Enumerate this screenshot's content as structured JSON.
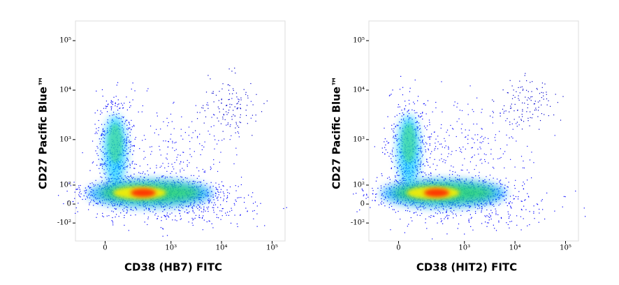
{
  "chart_data": [
    {
      "type": "density",
      "xlabel": "CD38 (HB7) FITC",
      "ylabel": "CD27 Pacific Blue™",
      "xscale": "biexponential",
      "yscale": "biexponential",
      "xlim": [
        -180,
        180000
      ],
      "ylim": [
        -270,
        250000
      ],
      "xticks": [
        {
          "value": 0,
          "label": "0"
        },
        {
          "value": 1000,
          "label": "10³"
        },
        {
          "value": 10000,
          "label": "10⁴"
        },
        {
          "value": 100000,
          "label": "10⁵"
        }
      ],
      "yticks": [
        {
          "value": -100,
          "label": "-10²"
        },
        {
          "value": 0,
          "label": "0"
        },
        {
          "value": 100,
          "label": "10²"
        },
        {
          "value": 1000,
          "label": "10³"
        },
        {
          "value": 10000,
          "label": "10⁴"
        },
        {
          "value": 100000,
          "label": "10⁵"
        }
      ]
    },
    {
      "type": "density",
      "xlabel": "CD38 (HIT2) FITC",
      "ylabel": "CD27 Pacific Blue™",
      "xscale": "biexponential",
      "yscale": "biexponential",
      "xlim": [
        -180,
        180000
      ],
      "ylim": [
        -270,
        250000
      ],
      "xticks": [
        {
          "value": 0,
          "label": "0"
        },
        {
          "value": 1000,
          "label": "10³"
        },
        {
          "value": 10000,
          "label": "10⁴"
        },
        {
          "value": 100000,
          "label": "10⁵"
        }
      ],
      "yticks": [
        {
          "value": -100,
          "label": "-10²"
        },
        {
          "value": 0,
          "label": "0"
        },
        {
          "value": 100,
          "label": "10²"
        },
        {
          "value": 1000,
          "label": "10³"
        },
        {
          "value": 10000,
          "label": "10⁴"
        },
        {
          "value": 100000,
          "label": "10⁵"
        }
      ]
    }
  ]
}
